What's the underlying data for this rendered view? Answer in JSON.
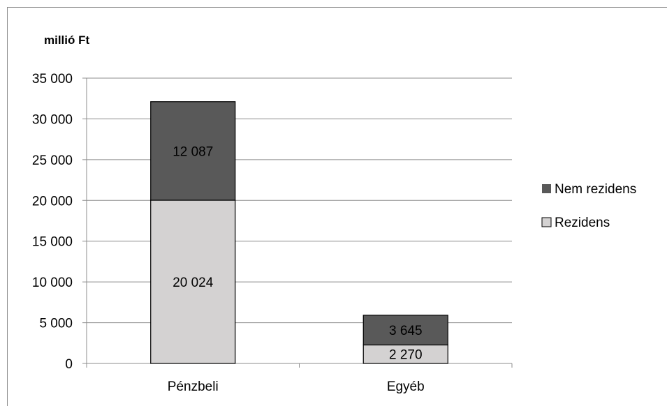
{
  "chart_data": {
    "type": "bar",
    "stacked": true,
    "ylabel": "millió Ft",
    "ylim": [
      0,
      35000
    ],
    "ytick_step": 5000,
    "ytick_labels": [
      "0",
      "5 000",
      "10 000",
      "15 000",
      "20 000",
      "25 000",
      "30 000",
      "35 000"
    ],
    "categories": [
      "Pénzbeli",
      "Egyéb"
    ],
    "series": [
      {
        "name": "Rezidens",
        "values": [
          20024,
          2270
        ],
        "value_labels": [
          "20 024",
          "2 270"
        ],
        "color": "#d4d2d2"
      },
      {
        "name": "Nem rezidens",
        "values": [
          12087,
          3645
        ],
        "value_labels": [
          "12 087",
          "3 645"
        ],
        "color": "#595959"
      }
    ],
    "legend_order": [
      "Nem rezidens",
      "Rezidens"
    ],
    "legend_position": "right",
    "grid": true,
    "gridline_color": "#8c8c8c"
  }
}
